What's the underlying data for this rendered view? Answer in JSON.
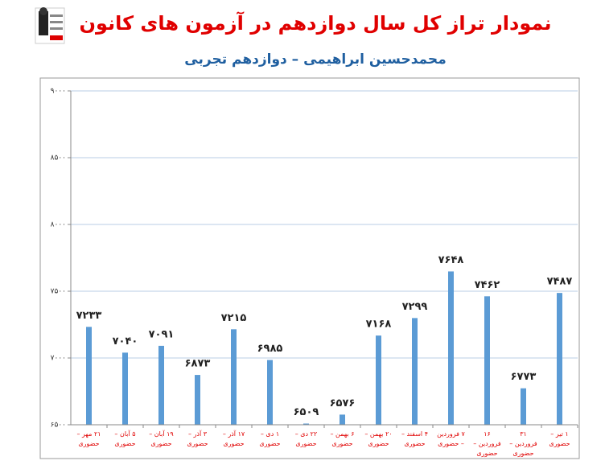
{
  "chart_data": {
    "type": "bar",
    "title": "نمودار تراز کل سال دوازدهم در آزمون های کانون",
    "subtitle": "محمدحسین ابراهیمی – دوازدهم تجربی",
    "categories": [
      "۲۱ مهر – حضوری",
      "۵ آبان – حضوری",
      "۱۹ آبان – حضوری",
      "۳ آذر – حضوری",
      "۱۷ آذر – حضوری",
      "۱ دی – حضوری",
      "۲۲ دی – حضوری",
      "۶ بهمن – حضوری",
      "۲۰ بهمن – حضوری",
      "۴ اسفند – حضوری",
      "۷ فروردین – حضوری",
      "۱۶ فروردین – حضوری",
      "۳۱ فروردین – حضوری",
      "۱ تیر – حضوری"
    ],
    "values": [
      7233,
      7040,
      7091,
      6873,
      7215,
      6985,
      6509,
      6576,
      7168,
      7299,
      7648,
      7462,
      6773,
      7487
    ],
    "value_labels": [
      "۷۲۳۳",
      "۷۰۴۰",
      "۷۰۹۱",
      "۶۸۷۳",
      "۷۲۱۵",
      "۶۹۸۵",
      "۶۵۰۹",
      "۶۵۷۶",
      "۷۱۶۸",
      "۷۲۹۹",
      "۷۶۴۸",
      "۷۴۶۲",
      "۶۷۷۳",
      "۷۴۸۷"
    ],
    "color": "#5b9bd5",
    "ylim": [
      6500,
      9000
    ],
    "yticks": [
      {
        "value": 6500,
        "label": "۶۵۰۰"
      },
      {
        "value": 7000,
        "label": "۷۰۰۰"
      },
      {
        "value": 7500,
        "label": "۷۵۰۰"
      },
      {
        "value": 8000,
        "label": "۸۰۰۰"
      },
      {
        "value": 8500,
        "label": "۸۵۰۰"
      },
      {
        "value": 9000,
        "label": "۹۰۰۰"
      }
    ],
    "grid": true
  }
}
